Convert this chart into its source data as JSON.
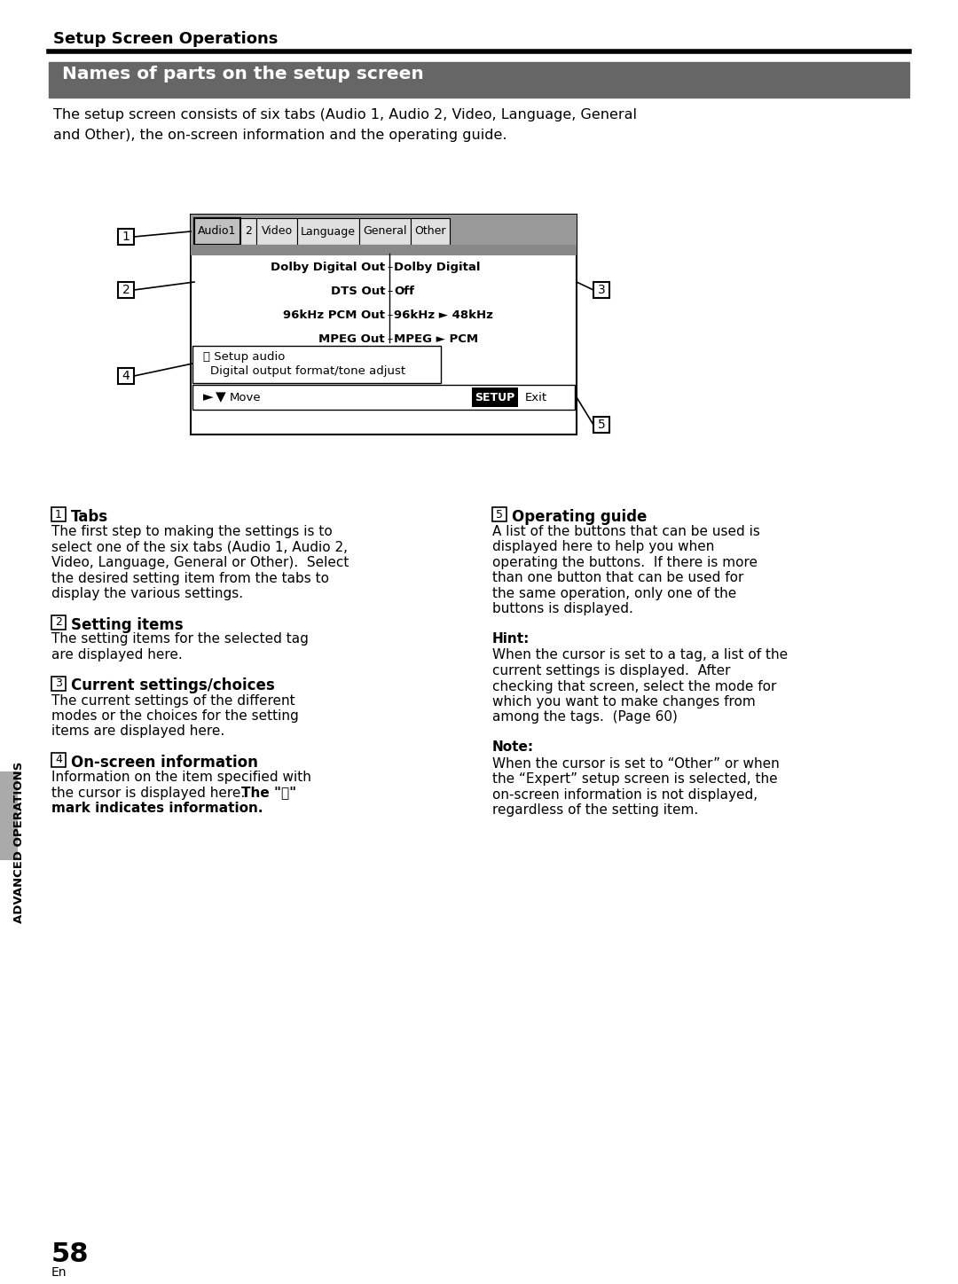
{
  "page_bg": "#ffffff",
  "top_header": "Setup Screen Operations",
  "section_title": "Names of parts on the setup screen",
  "section_title_bg": "#666666",
  "section_title_color": "#ffffff",
  "intro_text": "The setup screen consists of six tabs (Audio 1, Audio 2, Video, Language, General\nand Other), the on-screen information and the operating guide.",
  "tabs": [
    "Audio1",
    "2",
    "Video",
    "Language",
    "General",
    "Other"
  ],
  "tab_widths": [
    52,
    18,
    46,
    70,
    58,
    44
  ],
  "screen_rows_left": [
    "Dolby Digital Out",
    "DTS Out",
    "96kHz PCM Out",
    "MPEG Out"
  ],
  "screen_rows_right": [
    "Dolby Digital",
    "Off",
    "96kHz ► 48kHz",
    "MPEG ► PCM"
  ],
  "info_line1": "ⓘ Setup audio",
  "info_line2": "Digital output format/tone adjust",
  "setup_btn": "SETUP",
  "exit_btn": "Exit",
  "sidebar_text": "ADVANCED OPERATIONS",
  "page_number": "58",
  "page_sub": "En",
  "left_sections": [
    {
      "num": "1",
      "title": "Tabs",
      "body": "The first step to making the settings is to\nselect one of the six tabs (Audio 1, Audio 2,\nVideo, Language, General or Other).  Select\nthe desired setting item from the tabs to\ndisplay the various settings."
    },
    {
      "num": "2",
      "title": "Setting items",
      "body": "The setting items for the selected tag\nare displayed here."
    },
    {
      "num": "3",
      "title": "Current settings/choices",
      "body": "The current settings of the different\nmodes or the choices for the setting\nitems are displayed here."
    },
    {
      "num": "4",
      "title": "On-screen information",
      "body1": "Information on the item specified with",
      "body2": "the cursor is displayed here. ",
      "body2b": "The \"ⓘ\"",
      "body3": "mark indicates information."
    }
  ],
  "right_sections": [
    {
      "num": "5",
      "title": "Operating guide",
      "body": "A list of the buttons that can be used is\ndisplayed here to help you when\noperating the buttons.  If there is more\nthan one button that can be used for\nthe same operation, only one of the\nbuttons is displayed."
    },
    {
      "hint_title": "Hint:",
      "hint_body": "When the cursor is set to a tag, a list of the\ncurrent settings is displayed.  After\nchecking that screen, select the mode for\nwhich you want to make changes from\namong the tags.  (Page 60)"
    },
    {
      "note_title": "Note:",
      "note_body": "When the cursor is set to “Other” or when\nthe “Expert” setup screen is selected, the\non-screen information is not displayed,\nregardless of the setting item."
    }
  ]
}
